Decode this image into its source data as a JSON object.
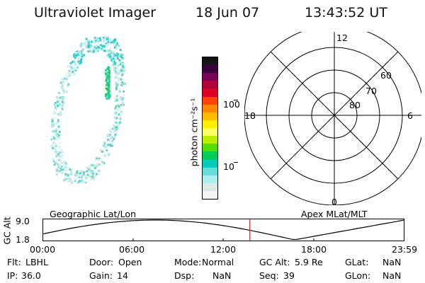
{
  "header": {
    "instrument": "Ultraviolet Imager",
    "date": "18 Jun 07",
    "time": "13:43:52 UT"
  },
  "colorbar": {
    "label": "photon cm⁻²s⁻¹",
    "ticks": [
      "100",
      "10"
    ],
    "colors": [
      "#141414",
      "#3a003a",
      "#7a005a",
      "#b0003a",
      "#dd0022",
      "#ff4400",
      "#ff8800",
      "#ffbb00",
      "#ffee00",
      "#ffff66",
      "#bbee00",
      "#55dd00",
      "#00cc55",
      "#00ccbb",
      "#66dddd",
      "#aaeeee",
      "#dde8e8",
      "#f4f4f4"
    ]
  },
  "polar": {
    "mlt_labels": {
      "top": "12",
      "bottom": "0",
      "left": "18",
      "right": "6"
    },
    "lat_labels": [
      "60",
      "70",
      "80"
    ]
  },
  "timeline": {
    "ylabel": "GC Alt",
    "ymax": "9.0",
    "ymin": "1.8",
    "left_label": "Geographic Lat/Lon",
    "right_label": "Apex MLat/MLT",
    "time_ticks": [
      "00:00",
      "06:00",
      "12:00",
      "18:00",
      "23:59"
    ],
    "current_time_fraction": 0.572,
    "marker_color": "#cc2222"
  },
  "footer": {
    "rows": [
      [
        {
          "k": "Flt:",
          "v": "LBHL"
        },
        {
          "k": "Door:",
          "v": "Open"
        },
        {
          "k": "Mode:",
          "v": "Normal"
        },
        {
          "k": "GC Alt:",
          "v": "5.9 Re"
        },
        {
          "k": "GLat:",
          "v": "NaN"
        }
      ],
      [
        {
          "k": "IP:",
          "v": "36.0"
        },
        {
          "k": "Gain:",
          "v": "14"
        },
        {
          "k": "Dsp:",
          "v": "NaN"
        },
        {
          "k": "Seq:",
          "v": "39"
        },
        {
          "k": "GLon:",
          "v": "NaN"
        }
      ]
    ]
  }
}
